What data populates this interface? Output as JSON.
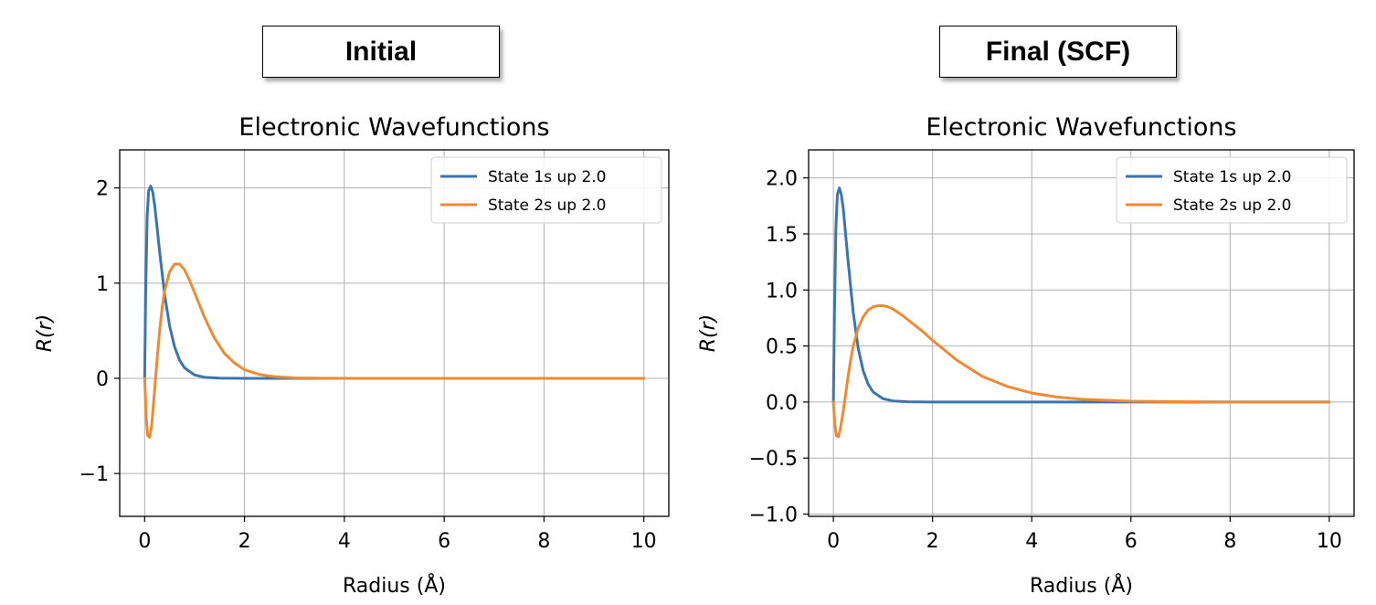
{
  "panels": [
    {
      "label": "Initial"
    },
    {
      "label": "Final (SCF)"
    }
  ],
  "chart_data": [
    {
      "type": "line",
      "title": "Electronic Wavefunctions",
      "xlabel": "Radius (Å)",
      "ylabel": "R(r)",
      "xlim": [
        -0.5,
        10.5
      ],
      "ylim": [
        -1.45,
        2.4
      ],
      "xticks": [
        0,
        2,
        4,
        6,
        8,
        10
      ],
      "xtick_labels": [
        "0",
        "2",
        "4",
        "6",
        "8",
        "10"
      ],
      "yticks": [
        -1,
        0,
        1,
        2
      ],
      "ytick_labels": [
        "−1",
        "0",
        "1",
        "2"
      ],
      "grid": true,
      "legend_position": "top-right",
      "series": [
        {
          "name": "State 1s up 2.0",
          "color": "#3a75b0",
          "x": [
            0,
            0.02,
            0.05,
            0.08,
            0.12,
            0.16,
            0.2,
            0.25,
            0.3,
            0.4,
            0.5,
            0.6,
            0.7,
            0.8,
            1.0,
            1.2,
            1.5,
            2.0,
            3.0,
            10.0
          ],
          "y": [
            0,
            0.9,
            1.7,
            1.97,
            2.02,
            1.96,
            1.82,
            1.58,
            1.33,
            0.88,
            0.55,
            0.33,
            0.19,
            0.11,
            0.035,
            0.011,
            0.002,
            0,
            0,
            0
          ]
        },
        {
          "name": "State 2s up 2.0",
          "color": "#ee8a34",
          "x": [
            0,
            0.03,
            0.06,
            0.1,
            0.14,
            0.2,
            0.25,
            0.3,
            0.35,
            0.4,
            0.5,
            0.6,
            0.7,
            0.8,
            0.9,
            1.0,
            1.2,
            1.4,
            1.6,
            1.8,
            2.0,
            2.3,
            2.6,
            3.0,
            3.5,
            4.0,
            10.0
          ],
          "y": [
            0,
            -0.4,
            -0.6,
            -0.62,
            -0.5,
            -0.12,
            0.2,
            0.5,
            0.74,
            0.92,
            1.12,
            1.2,
            1.2,
            1.14,
            1.03,
            0.9,
            0.64,
            0.42,
            0.26,
            0.16,
            0.09,
            0.04,
            0.018,
            0.005,
            0.001,
            0,
            0
          ]
        }
      ]
    },
    {
      "type": "line",
      "title": "Electronic Wavefunctions",
      "xlabel": "Radius (Å)",
      "ylabel": "R(r)",
      "xlim": [
        -0.5,
        10.5
      ],
      "ylim": [
        -1.02,
        2.25
      ],
      "xticks": [
        0,
        2,
        4,
        6,
        8,
        10
      ],
      "xtick_labels": [
        "0",
        "2",
        "4",
        "6",
        "8",
        "10"
      ],
      "yticks": [
        -1.0,
        -0.5,
        0.0,
        0.5,
        1.0,
        1.5,
        2.0
      ],
      "ytick_labels": [
        "−1.0",
        "−0.5",
        "0.0",
        "0.5",
        "1.0",
        "1.5",
        "2.0"
      ],
      "grid": true,
      "legend_position": "top-right",
      "series": [
        {
          "name": "State 1s up 2.0",
          "color": "#3a75b0",
          "x": [
            0,
            0.02,
            0.05,
            0.08,
            0.12,
            0.16,
            0.2,
            0.25,
            0.3,
            0.4,
            0.5,
            0.6,
            0.7,
            0.8,
            1.0,
            1.2,
            1.5,
            2.0,
            3.0,
            10.0
          ],
          "y": [
            0,
            0.75,
            1.55,
            1.85,
            1.91,
            1.85,
            1.72,
            1.48,
            1.24,
            0.8,
            0.48,
            0.28,
            0.16,
            0.09,
            0.03,
            0.01,
            0.002,
            0,
            0,
            0
          ]
        },
        {
          "name": "State 2s up 2.0",
          "color": "#ee8a34",
          "x": [
            0,
            0.03,
            0.06,
            0.1,
            0.14,
            0.2,
            0.25,
            0.3,
            0.35,
            0.4,
            0.5,
            0.6,
            0.7,
            0.8,
            0.9,
            1.0,
            1.1,
            1.2,
            1.4,
            1.6,
            1.8,
            2.0,
            2.5,
            3.0,
            3.5,
            4.0,
            4.5,
            5.0,
            6.0,
            7.0,
            8.0,
            10.0
          ],
          "y": [
            0,
            -0.2,
            -0.3,
            -0.31,
            -0.24,
            -0.08,
            0.08,
            0.24,
            0.38,
            0.5,
            0.66,
            0.76,
            0.82,
            0.85,
            0.86,
            0.86,
            0.85,
            0.83,
            0.77,
            0.7,
            0.63,
            0.55,
            0.37,
            0.23,
            0.14,
            0.08,
            0.045,
            0.025,
            0.007,
            0.002,
            0,
            0
          ]
        }
      ]
    }
  ]
}
